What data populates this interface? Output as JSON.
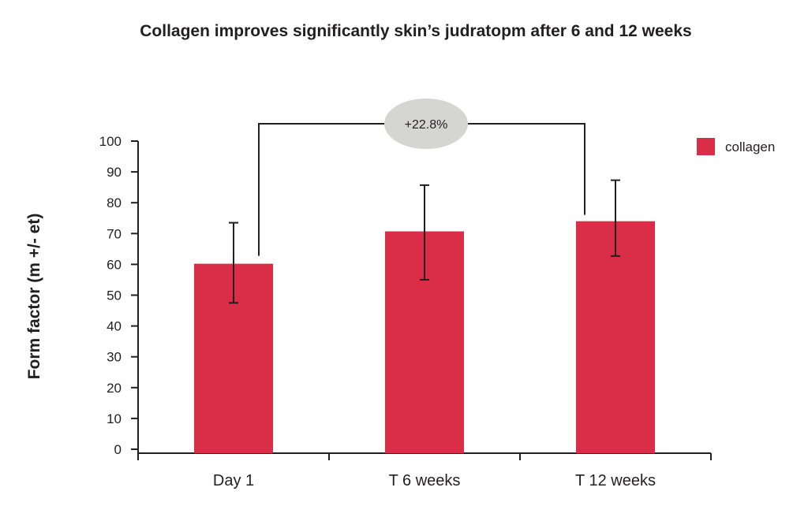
{
  "chart_data": {
    "type": "bar",
    "title": "Collagen improves significantly skin’s judratopm after 6 and 12 weeks",
    "xlabel": "",
    "ylabel": "Form factor (m +/- et)",
    "categories": [
      "Day 1",
      "T 6 weeks",
      "T 12 weeks"
    ],
    "series": [
      {
        "name": "collagen",
        "color": "#d92d48",
        "values": [
          60.2,
          70.7,
          74.0
        ],
        "error_low": [
          47.5,
          55.0,
          62.7
        ],
        "error_high": [
          73.5,
          85.7,
          87.3
        ]
      }
    ],
    "ylim": [
      0,
      100
    ],
    "yticks": [
      0,
      10,
      20,
      30,
      40,
      50,
      60,
      70,
      80,
      90,
      100
    ],
    "grid": false,
    "legend_position": "top-right",
    "annotation": {
      "text": "+22.8%",
      "from_category": "Day 1",
      "to_category": "T 12 weeks",
      "bubble_color": "#d5d5d1"
    },
    "colors": {
      "axis": "#231f20",
      "text": "#231f20"
    }
  }
}
